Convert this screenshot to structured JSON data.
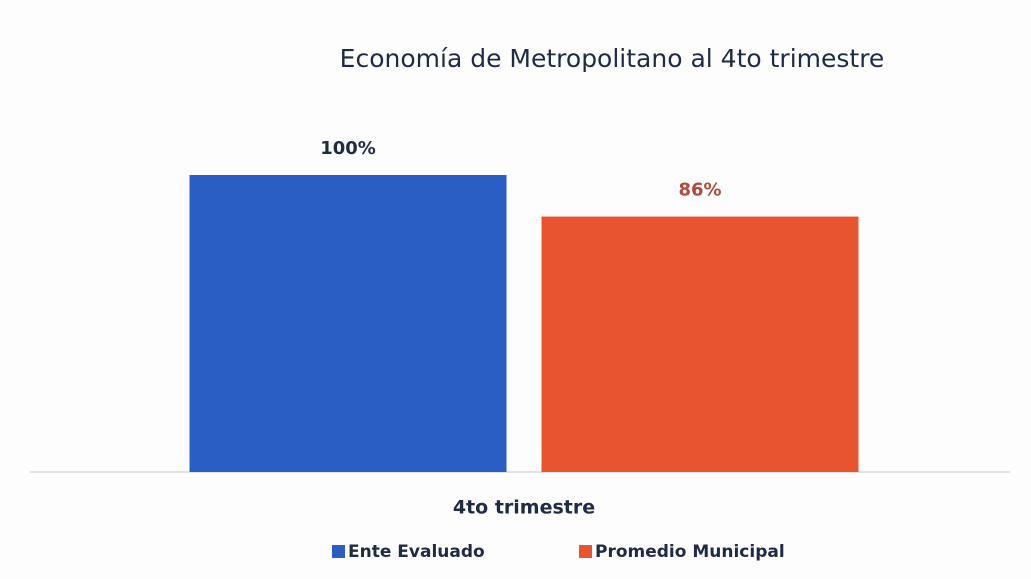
{
  "chart_data": {
    "type": "bar",
    "title": "Economía de Metropolitano al 4to trimestre",
    "categories": [
      "4to trimestre"
    ],
    "series": [
      {
        "name": "Ente Evaluado",
        "color": "#2b5ec4",
        "label_color": "#1f2a44",
        "values": [
          100
        ],
        "value_labels": [
          "100%"
        ]
      },
      {
        "name": "Promedio Municipal",
        "color": "#e8542f",
        "label_color": "#b04a3a",
        "values": [
          86
        ],
        "value_labels": [
          "86%"
        ]
      }
    ],
    "ylim": [
      0,
      100
    ],
    "legend": "bottom"
  }
}
